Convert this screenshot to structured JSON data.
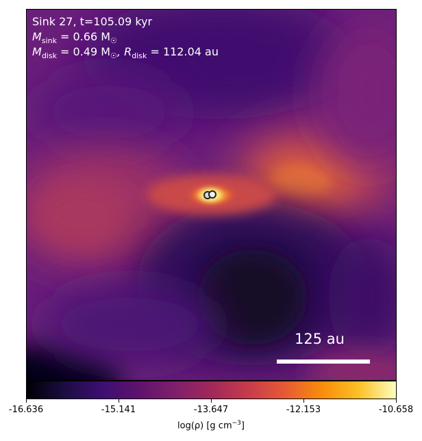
{
  "annotations": {
    "title": "Sink 27, t=105.09 kyr",
    "sink_mass_label": "M",
    "sink_mass_sub": "sink",
    "sink_mass_value": " = 0.66 M",
    "sun_symbol": "☉",
    "disk_mass_label": "M",
    "disk_mass_sub": "disk",
    "disk_mass_value": " = 0.49 M",
    "disk_radius_label": ", R",
    "disk_radius_sub": "disk",
    "disk_radius_value": " = 112.04 au"
  },
  "scale_bar": {
    "label": "125 au"
  },
  "colorbar": {
    "ticks": [
      "-16.636",
      "-15.141",
      "-13.647",
      "-12.153",
      "-10.658"
    ],
    "title": "log(ρ) [g cm",
    "title_sup": "−3",
    "title_end": "]"
  },
  "colors": {
    "background": "#5a1a78",
    "high_density": "#fdf28f",
    "low_density": "#000004"
  },
  "colormap": "inferno"
}
